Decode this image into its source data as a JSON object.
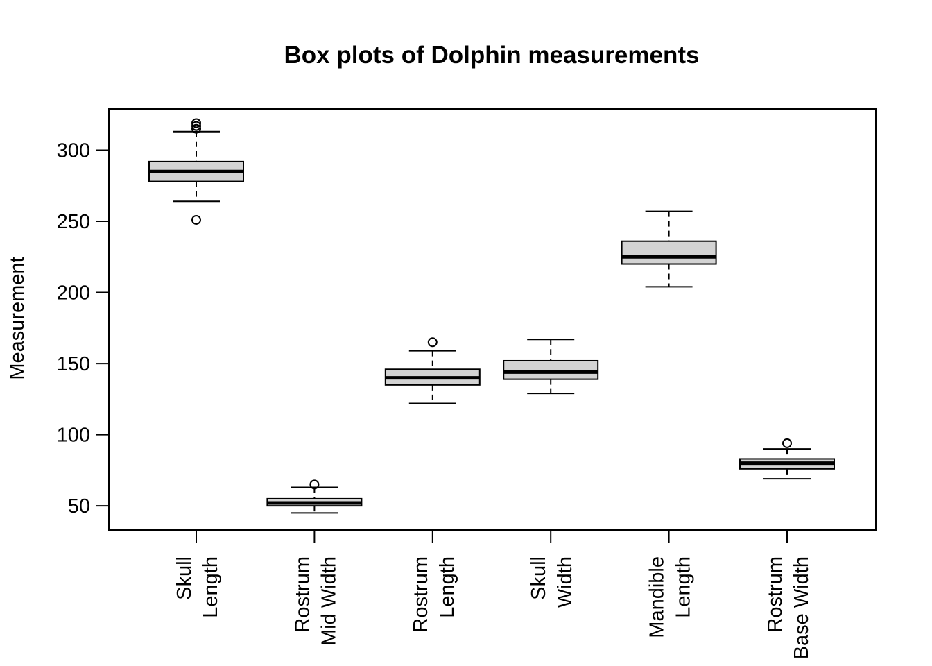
{
  "chart_data": {
    "type": "box",
    "title": "Box plots of Dolphin measurements",
    "xlabel": "",
    "ylabel": "Measurement",
    "ylim": [
      33,
      329
    ],
    "yticks": [
      50,
      100,
      150,
      200,
      250,
      300
    ],
    "grid": false,
    "legend": "none",
    "colors": {
      "box_fill": "#d3d3d3",
      "stroke": "#000000",
      "background": "#ffffff"
    },
    "categories": [
      {
        "lines": [
          "Skull",
          "Length"
        ],
        "whisker_low": 264,
        "q1": 278,
        "median": 285,
        "q3": 292,
        "whisker_high": 313,
        "outliers": [
          251,
          315,
          317,
          319
        ]
      },
      {
        "lines": [
          "Rostrum",
          "Mid Width"
        ],
        "whisker_low": 45,
        "q1": 50,
        "median": 52,
        "q3": 55,
        "whisker_high": 63,
        "outliers": [
          65
        ]
      },
      {
        "lines": [
          "Rostrum",
          "Length"
        ],
        "whisker_low": 122,
        "q1": 135,
        "median": 140,
        "q3": 146,
        "whisker_high": 159,
        "outliers": [
          165
        ]
      },
      {
        "lines": [
          "Skull",
          "Width"
        ],
        "whisker_low": 129,
        "q1": 139,
        "median": 144,
        "q3": 152,
        "whisker_high": 167,
        "outliers": []
      },
      {
        "lines": [
          "Mandible",
          "Length"
        ],
        "whisker_low": 204,
        "q1": 220,
        "median": 225,
        "q3": 236,
        "whisker_high": 257,
        "outliers": []
      },
      {
        "lines": [
          "Rostrum",
          "Base Width"
        ],
        "whisker_low": 69,
        "q1": 76,
        "median": 80,
        "q3": 83,
        "whisker_high": 90,
        "outliers": [
          94
        ]
      }
    ]
  }
}
